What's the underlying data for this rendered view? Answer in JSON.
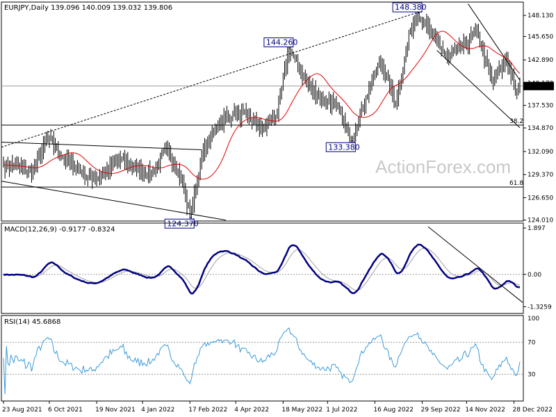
{
  "header": {
    "symbol_line": "EURJPY,Daily  139.096 140.009 139.032 139.806",
    "macd_line": "MACD(12,26,9) -0.9177 -0.8324",
    "rsi_line": "RSI(14) 45.6868"
  },
  "watermark": "ActionForex.com",
  "colors": {
    "background": "#ffffff",
    "price_bar": "#000000",
    "moving_average": "#e00000",
    "macd_main": "#000080",
    "macd_signal": "#a0a0a0",
    "rsi_line": "#3a9ad9",
    "label_border": "#000080",
    "price_tag_bg": "#000000"
  },
  "chart_data": [
    {
      "type": "line",
      "name": "price",
      "ylim": [
        123.9,
        149.7
      ],
      "y_ticks": [
        "148.130",
        "145.650",
        "142.890",
        "140.170",
        "137.530",
        "134.870",
        "132.090",
        "129.370",
        "126.650",
        "124.010"
      ],
      "y_tick_values": [
        148.13,
        145.65,
        142.89,
        140.17,
        137.53,
        134.87,
        132.09,
        129.37,
        126.65,
        124.01
      ],
      "x_labels": [
        "23 Aug 2021",
        "6 Oct 2021",
        "19 Nov 2021",
        "4 Jan 2022",
        "17 Feb 2022",
        "4 Apr 2022",
        "18 May 2022",
        "1 Jul 2022",
        "16 Aug 2022",
        "29 Sep 2022",
        "14 Nov 2022",
        "28 Dec 2022"
      ],
      "x_label_index": [
        0,
        31,
        63,
        94,
        126,
        157,
        189,
        219,
        251,
        283,
        313,
        345
      ],
      "last_price": "139.806",
      "last_price_value": 139.806,
      "close_key_points": [
        [
          0,
          130.5
        ],
        [
          10,
          130.3
        ],
        [
          20,
          129.6
        ],
        [
          30,
          133.7
        ],
        [
          40,
          131.4
        ],
        [
          50,
          130.1
        ],
        [
          60,
          128.7
        ],
        [
          70,
          129.9
        ],
        [
          80,
          131.2
        ],
        [
          90,
          130.0
        ],
        [
          100,
          129.4
        ],
        [
          110,
          132.4
        ],
        [
          120,
          129.0
        ],
        [
          126,
          124.4
        ],
        [
          135,
          132.0
        ],
        [
          145,
          135.5
        ],
        [
          155,
          136.6
        ],
        [
          165,
          136.1
        ],
        [
          175,
          134.8
        ],
        [
          185,
          136.5
        ],
        [
          193,
          144.26
        ],
        [
          205,
          140.2
        ],
        [
          215,
          138.2
        ],
        [
          225,
          137.6
        ],
        [
          235,
          133.38
        ],
        [
          245,
          138.5
        ],
        [
          255,
          142.8
        ],
        [
          265,
          137.8
        ],
        [
          275,
          146.4
        ],
        [
          280,
          148.38
        ],
        [
          290,
          145.7
        ],
        [
          300,
          143.2
        ],
        [
          310,
          144.3
        ],
        [
          320,
          146.2
        ],
        [
          330,
          140.3
        ],
        [
          340,
          143.0
        ],
        [
          346,
          139.2
        ],
        [
          349,
          139.806
        ]
      ],
      "annotations": [
        {
          "label": "148.380",
          "index": 280,
          "value": 148.38,
          "position": "above"
        },
        {
          "label": "144.260",
          "index": 193,
          "value": 144.26,
          "position": "above"
        },
        {
          "label": "133.380",
          "index": 235,
          "value": 133.38,
          "position": "below"
        },
        {
          "label": "124.370",
          "index": 126,
          "value": 124.37,
          "position": "below"
        }
      ],
      "fib_levels": [
        {
          "label": "38.2",
          "value": 135.2
        },
        {
          "label": "61.8",
          "value": 127.9
        }
      ],
      "horizontal_lines": [
        139.806
      ]
    },
    {
      "type": "line",
      "name": "MACD(12,26,9)",
      "ylim": [
        -1.6,
        2.1
      ],
      "y_ticks": [
        "1.897",
        "0.00",
        "-1.3259"
      ],
      "y_tick_values": [
        1.897,
        0.0,
        -1.3259
      ],
      "main_value": -0.9177,
      "signal_value": -0.8324
    },
    {
      "type": "line",
      "name": "RSI(14)",
      "ylim": [
        0,
        100
      ],
      "y_ticks": [
        "100",
        "70",
        "30",
        "0"
      ],
      "y_tick_values": [
        100,
        70,
        30,
        0
      ],
      "levels": [
        70,
        30
      ],
      "last_value": 45.6868
    }
  ]
}
